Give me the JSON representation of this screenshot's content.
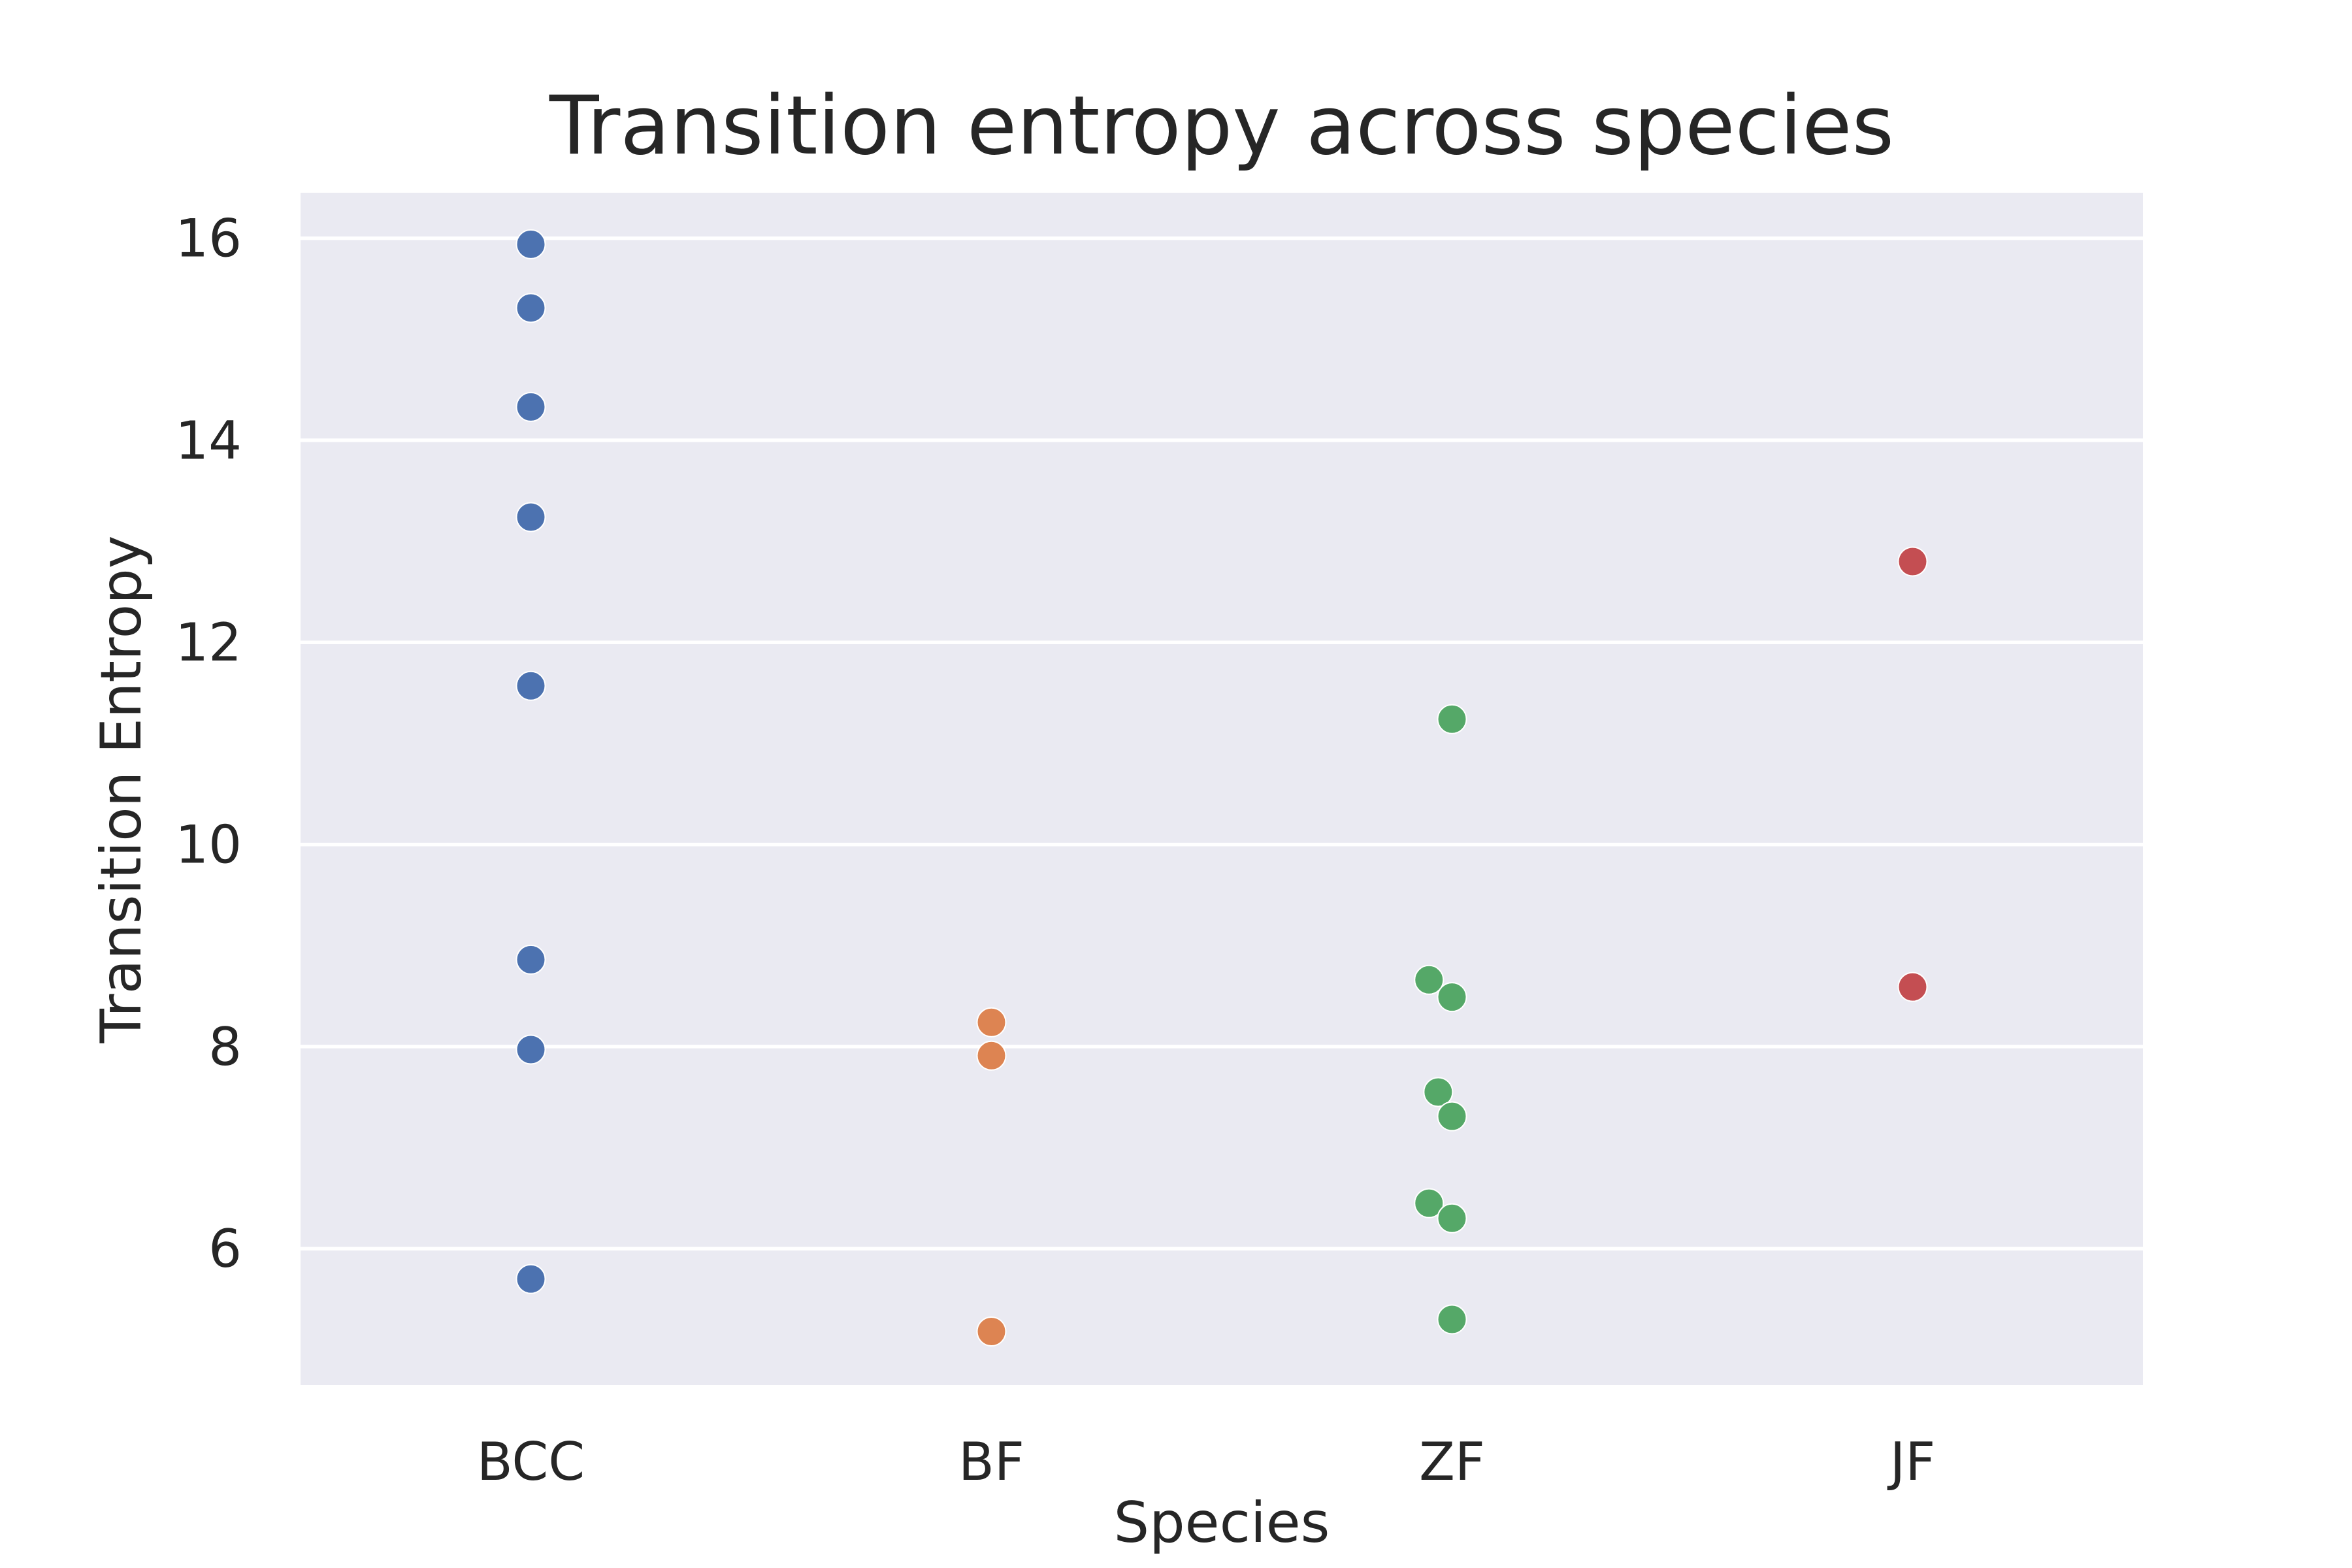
{
  "chart_data": {
    "type": "scatter",
    "subtype": "swarm",
    "title": "Transition entropy across species",
    "xlabel": "Species",
    "ylabel": "Transition Entropy",
    "categories": [
      "BCC",
      "BF",
      "ZF",
      "JF"
    ],
    "ylim": [
      4.65,
      16.45
    ],
    "yticks": [
      6,
      8,
      10,
      12,
      14,
      16
    ],
    "grid": true,
    "series": [
      {
        "category": "BCC",
        "color": "#4c72b0",
        "points": [
          {
            "value": 15.94,
            "offset": 0.0
          },
          {
            "value": 15.31,
            "offset": 0.0
          },
          {
            "value": 14.33,
            "offset": 0.0
          },
          {
            "value": 13.24,
            "offset": 0.0
          },
          {
            "value": 11.57,
            "offset": 0.0
          },
          {
            "value": 8.86,
            "offset": 0.0
          },
          {
            "value": 7.97,
            "offset": 0.0
          },
          {
            "value": 5.7,
            "offset": 0.0
          }
        ]
      },
      {
        "category": "BF",
        "color": "#dd8452",
        "points": [
          {
            "value": 8.24,
            "offset": 0.0
          },
          {
            "value": 7.91,
            "offset": 0.0
          },
          {
            "value": 5.18,
            "offset": 0.0
          }
        ]
      },
      {
        "category": "ZF",
        "color": "#55a868",
        "points": [
          {
            "value": 11.24,
            "offset": 0.0
          },
          {
            "value": 8.66,
            "offset": -0.05
          },
          {
            "value": 8.49,
            "offset": 0.0
          },
          {
            "value": 7.55,
            "offset": -0.03
          },
          {
            "value": 7.31,
            "offset": 0.0
          },
          {
            "value": 6.45,
            "offset": -0.05
          },
          {
            "value": 6.3,
            "offset": 0.0
          },
          {
            "value": 5.3,
            "offset": 0.0
          }
        ]
      },
      {
        "category": "JF",
        "color": "#c44e52",
        "points": [
          {
            "value": 12.8,
            "offset": 0.0
          },
          {
            "value": 8.59,
            "offset": 0.0
          }
        ]
      }
    ]
  }
}
